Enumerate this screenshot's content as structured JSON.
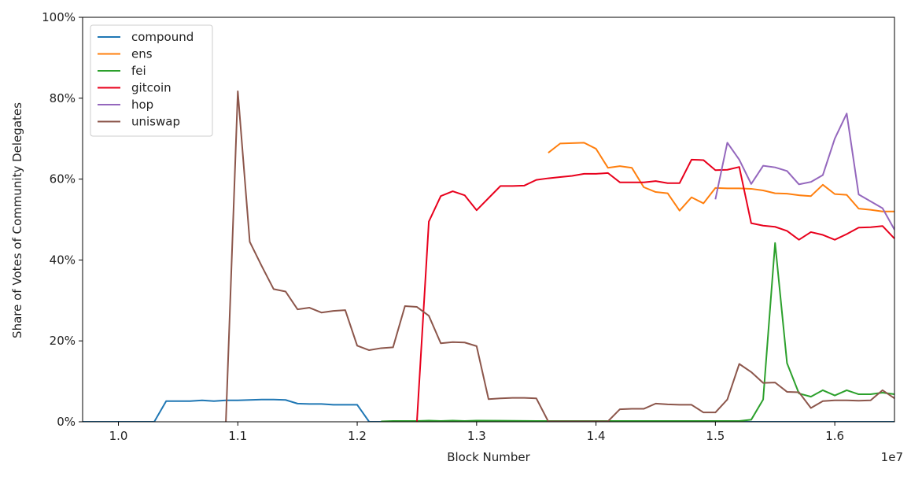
{
  "chart_data": {
    "type": "line",
    "title": "",
    "xlabel": "Block Number",
    "ylabel": "Share of Votes of Community Delegates",
    "x_offset_label": "1e7",
    "xlim": [
      0.97,
      1.65
    ],
    "ylim": [
      0,
      100
    ],
    "xticks": [
      1.0,
      1.1,
      1.2,
      1.3,
      1.4,
      1.5,
      1.6
    ],
    "xtick_labels": [
      "1.0",
      "1.1",
      "1.2",
      "1.3",
      "1.4",
      "1.5",
      "1.6"
    ],
    "yticks": [
      0,
      20,
      40,
      60,
      80,
      100
    ],
    "ytick_labels": [
      "0%",
      "20%",
      "40%",
      "60%",
      "80%",
      "100%"
    ],
    "grid": false,
    "legend_position": "top-left",
    "series": [
      {
        "name": "compound",
        "color": "#1f77b4",
        "points": [
          [
            0.97,
            0
          ],
          [
            0.98,
            0
          ],
          [
            0.99,
            0
          ],
          [
            1.0,
            0
          ],
          [
            1.01,
            0
          ],
          [
            1.02,
            0
          ],
          [
            1.03,
            0
          ],
          [
            1.04,
            5.1
          ],
          [
            1.05,
            5.1
          ],
          [
            1.06,
            5.1
          ],
          [
            1.07,
            5.3
          ],
          [
            1.08,
            5.1
          ],
          [
            1.09,
            5.3
          ],
          [
            1.1,
            5.3
          ],
          [
            1.11,
            5.4
          ],
          [
            1.12,
            5.5
          ],
          [
            1.13,
            5.5
          ],
          [
            1.14,
            5.4
          ],
          [
            1.15,
            4.5
          ],
          [
            1.16,
            4.4
          ],
          [
            1.17,
            4.4
          ],
          [
            1.18,
            4.2
          ],
          [
            1.19,
            4.2
          ],
          [
            1.2,
            4.2
          ],
          [
            1.21,
            0
          ],
          [
            1.3,
            0
          ],
          [
            1.4,
            0
          ],
          [
            1.5,
            0
          ],
          [
            1.6,
            0
          ],
          [
            1.65,
            0
          ]
        ]
      },
      {
        "name": "ens",
        "color": "#ff7f0e",
        "points": [
          [
            1.36,
            66.5
          ],
          [
            1.37,
            68.8
          ],
          [
            1.38,
            68.9
          ],
          [
            1.39,
            69.0
          ],
          [
            1.4,
            67.5
          ],
          [
            1.41,
            62.8
          ],
          [
            1.42,
            63.2
          ],
          [
            1.43,
            62.8
          ],
          [
            1.44,
            58.0
          ],
          [
            1.45,
            56.8
          ],
          [
            1.46,
            56.5
          ],
          [
            1.47,
            52.2
          ],
          [
            1.48,
            55.5
          ],
          [
            1.49,
            54.0
          ],
          [
            1.5,
            57.8
          ],
          [
            1.51,
            57.7
          ],
          [
            1.52,
            57.7
          ],
          [
            1.53,
            57.6
          ],
          [
            1.54,
            57.2
          ],
          [
            1.55,
            56.5
          ],
          [
            1.56,
            56.4
          ],
          [
            1.57,
            56.0
          ],
          [
            1.58,
            55.8
          ],
          [
            1.59,
            58.6
          ],
          [
            1.6,
            56.3
          ],
          [
            1.61,
            56.1
          ],
          [
            1.62,
            52.7
          ],
          [
            1.63,
            52.4
          ],
          [
            1.64,
            52.0
          ],
          [
            1.65,
            52.0
          ]
        ]
      },
      {
        "name": "fei",
        "color": "#2ca02c",
        "points": [
          [
            1.22,
            0.1
          ],
          [
            1.23,
            0.2
          ],
          [
            1.24,
            0.2
          ],
          [
            1.25,
            0.2
          ],
          [
            1.26,
            0.3
          ],
          [
            1.27,
            0.2
          ],
          [
            1.28,
            0.3
          ],
          [
            1.29,
            0.2
          ],
          [
            1.3,
            0.3
          ],
          [
            1.35,
            0.2
          ],
          [
            1.4,
            0.2
          ],
          [
            1.45,
            0.2
          ],
          [
            1.5,
            0.2
          ],
          [
            1.52,
            0.2
          ],
          [
            1.53,
            0.5
          ],
          [
            1.54,
            5.5
          ],
          [
            1.55,
            44.2
          ],
          [
            1.56,
            14.5
          ],
          [
            1.57,
            7.0
          ],
          [
            1.58,
            6.2
          ],
          [
            1.59,
            7.8
          ],
          [
            1.6,
            6.5
          ],
          [
            1.61,
            7.8
          ],
          [
            1.62,
            6.8
          ],
          [
            1.63,
            6.8
          ],
          [
            1.64,
            7.2
          ],
          [
            1.65,
            6.8
          ]
        ]
      },
      {
        "name": "gitcoin",
        "color": "#e8001c",
        "points": [
          [
            1.25,
            0
          ],
          [
            1.26,
            49.5
          ],
          [
            1.27,
            55.8
          ],
          [
            1.28,
            57.0
          ],
          [
            1.29,
            56.0
          ],
          [
            1.3,
            52.3
          ],
          [
            1.31,
            55.3
          ],
          [
            1.32,
            58.3
          ],
          [
            1.33,
            58.3
          ],
          [
            1.34,
            58.4
          ],
          [
            1.35,
            59.8
          ],
          [
            1.36,
            60.2
          ],
          [
            1.37,
            60.5
          ],
          [
            1.38,
            60.8
          ],
          [
            1.39,
            61.3
          ],
          [
            1.4,
            61.3
          ],
          [
            1.41,
            61.5
          ],
          [
            1.42,
            59.2
          ],
          [
            1.43,
            59.2
          ],
          [
            1.44,
            59.2
          ],
          [
            1.45,
            59.5
          ],
          [
            1.46,
            59.0
          ],
          [
            1.47,
            59.0
          ],
          [
            1.48,
            64.8
          ],
          [
            1.49,
            64.7
          ],
          [
            1.5,
            62.2
          ],
          [
            1.51,
            62.3
          ],
          [
            1.52,
            63.0
          ],
          [
            1.53,
            49.1
          ],
          [
            1.54,
            48.5
          ],
          [
            1.55,
            48.2
          ],
          [
            1.56,
            47.2
          ],
          [
            1.57,
            45.0
          ],
          [
            1.58,
            46.9
          ],
          [
            1.59,
            46.2
          ],
          [
            1.6,
            45.0
          ],
          [
            1.61,
            46.4
          ],
          [
            1.62,
            48.0
          ],
          [
            1.63,
            48.1
          ],
          [
            1.64,
            48.4
          ],
          [
            1.65,
            45.3
          ]
        ]
      },
      {
        "name": "hop",
        "color": "#9467bd",
        "points": [
          [
            1.5,
            55.0
          ],
          [
            1.51,
            69.0
          ],
          [
            1.52,
            64.8
          ],
          [
            1.53,
            58.8
          ],
          [
            1.54,
            63.3
          ],
          [
            1.55,
            62.9
          ],
          [
            1.56,
            62.0
          ],
          [
            1.57,
            58.7
          ],
          [
            1.58,
            59.3
          ],
          [
            1.59,
            61.0
          ],
          [
            1.6,
            70.0
          ],
          [
            1.61,
            76.2
          ],
          [
            1.62,
            56.2
          ],
          [
            1.63,
            54.5
          ],
          [
            1.64,
            52.8
          ],
          [
            1.65,
            47.5
          ]
        ]
      },
      {
        "name": "uniswap",
        "color": "#8c564b",
        "points": [
          [
            1.09,
            0
          ],
          [
            1.1,
            81.7
          ],
          [
            1.11,
            44.5
          ],
          [
            1.12,
            38.5
          ],
          [
            1.13,
            32.8
          ],
          [
            1.14,
            32.2
          ],
          [
            1.15,
            27.8
          ],
          [
            1.16,
            28.2
          ],
          [
            1.17,
            27.0
          ],
          [
            1.18,
            27.4
          ],
          [
            1.19,
            27.6
          ],
          [
            1.2,
            18.8
          ],
          [
            1.21,
            17.7
          ],
          [
            1.22,
            18.2
          ],
          [
            1.23,
            18.4
          ],
          [
            1.24,
            28.6
          ],
          [
            1.25,
            28.4
          ],
          [
            1.26,
            26.2
          ],
          [
            1.27,
            19.4
          ],
          [
            1.28,
            19.7
          ],
          [
            1.29,
            19.6
          ],
          [
            1.3,
            18.7
          ],
          [
            1.31,
            5.6
          ],
          [
            1.32,
            5.8
          ],
          [
            1.33,
            5.9
          ],
          [
            1.34,
            5.9
          ],
          [
            1.35,
            5.8
          ],
          [
            1.36,
            0.1
          ],
          [
            1.37,
            0.1
          ],
          [
            1.38,
            0.1
          ],
          [
            1.39,
            0.1
          ],
          [
            1.4,
            0.1
          ],
          [
            1.41,
            0.1
          ],
          [
            1.42,
            3.1
          ],
          [
            1.43,
            3.2
          ],
          [
            1.44,
            3.2
          ],
          [
            1.45,
            4.5
          ],
          [
            1.46,
            4.3
          ],
          [
            1.47,
            4.2
          ],
          [
            1.48,
            4.2
          ],
          [
            1.49,
            2.3
          ],
          [
            1.5,
            2.3
          ],
          [
            1.51,
            5.5
          ],
          [
            1.52,
            14.3
          ],
          [
            1.53,
            12.3
          ],
          [
            1.54,
            9.6
          ],
          [
            1.55,
            9.7
          ],
          [
            1.56,
            7.4
          ],
          [
            1.57,
            7.3
          ],
          [
            1.58,
            3.4
          ],
          [
            1.59,
            5.1
          ],
          [
            1.6,
            5.3
          ],
          [
            1.61,
            5.3
          ],
          [
            1.62,
            5.2
          ],
          [
            1.63,
            5.3
          ],
          [
            1.64,
            7.8
          ],
          [
            1.65,
            5.8
          ]
        ]
      }
    ]
  }
}
